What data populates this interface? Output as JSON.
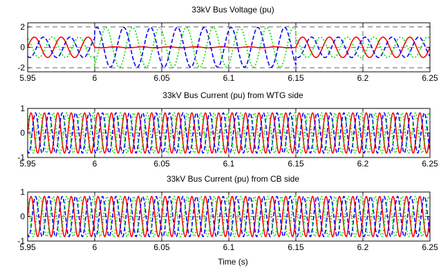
{
  "chart_data": [
    {
      "type": "line",
      "title": "33kV Bus Voltage (pu)",
      "xlabel": "",
      "ylabel": "",
      "xlim": [
        5.95,
        6.25
      ],
      "ylim": [
        -2.4,
        2.4
      ],
      "xticks": [
        5.95,
        6,
        6.05,
        6.1,
        6.15,
        6.2,
        6.25
      ],
      "xtick_labels": [
        "5.95",
        "6",
        "6.05",
        "6.1",
        "6.15",
        "6.2",
        "6.25"
      ],
      "yticks": [
        -2,
        0,
        2
      ],
      "ytick_labels": [
        "-2",
        "0",
        "2"
      ],
      "grid": true,
      "frequency_hz": 50,
      "series": [
        {
          "color": "#ff0000",
          "style": "solid",
          "phase_deg": 0,
          "segments": [
            {
              "x_start": 5.95,
              "x_end": 6.0,
              "amplitude": 1.0
            },
            {
              "x_start": 6.0,
              "x_end": 6.15,
              "amplitude": 0.05
            },
            {
              "x_start": 6.15,
              "x_end": 6.25,
              "amplitude": 1.0
            }
          ]
        },
        {
          "color": "#0000ff",
          "style": "dashed",
          "phase_deg": -120,
          "segments": [
            {
              "x_start": 5.95,
              "x_end": 6.0,
              "amplitude": 1.0
            },
            {
              "x_start": 6.0,
              "x_end": 6.15,
              "amplitude": 1.95
            },
            {
              "x_start": 6.15,
              "x_end": 6.25,
              "amplitude": 1.0
            }
          ]
        },
        {
          "color": "#00dd00",
          "style": "dotted",
          "phase_deg": 120,
          "segments": [
            {
              "x_start": 5.95,
              "x_end": 6.0,
              "amplitude": 1.0
            },
            {
              "x_start": 6.0,
              "x_end": 6.15,
              "amplitude": 1.95
            },
            {
              "x_start": 6.15,
              "x_end": 6.25,
              "amplitude": 1.0
            }
          ]
        }
      ]
    },
    {
      "type": "line",
      "title": "33kV Bus Current (pu) from WTG side",
      "xlabel": "",
      "ylabel": "",
      "xlim": [
        5.95,
        6.25
      ],
      "ylim": [
        -1,
        1
      ],
      "xticks": [
        5.95,
        6,
        6.05,
        6.1,
        6.15,
        6.2,
        6.25
      ],
      "xtick_labels": [
        "5.95",
        "6",
        "6.05",
        "6.1",
        "6.15",
        "6.2",
        "6.25"
      ],
      "yticks": [
        -1,
        0,
        1
      ],
      "ytick_labels": [
        "-1",
        "0",
        "1"
      ],
      "grid": true,
      "frequency_hz": 100,
      "series": [
        {
          "color": "#ff0000",
          "style": "solid",
          "phase_deg": 0,
          "segments": [
            {
              "x_start": 5.95,
              "x_end": 6.25,
              "amplitude": 0.82
            }
          ]
        },
        {
          "color": "#0000ff",
          "style": "dashed",
          "phase_deg": -120,
          "segments": [
            {
              "x_start": 5.95,
              "x_end": 6.25,
              "amplitude": 0.82
            }
          ]
        },
        {
          "color": "#00dd00",
          "style": "dotted",
          "phase_deg": 120,
          "segments": [
            {
              "x_start": 5.95,
              "x_end": 6.25,
              "amplitude": 0.82
            }
          ]
        }
      ]
    },
    {
      "type": "line",
      "title": "33kV Bus Current (pu) from CB side",
      "xlabel": "Time (s)",
      "ylabel": "",
      "xlim": [
        5.95,
        6.25
      ],
      "ylim": [
        -1,
        1
      ],
      "xticks": [
        5.95,
        6,
        6.05,
        6.1,
        6.15,
        6.2,
        6.25
      ],
      "xtick_labels": [
        "5.95",
        "6",
        "6.05",
        "6.1",
        "6.15",
        "6.2",
        "6.25"
      ],
      "yticks": [
        -1,
        0,
        1
      ],
      "ytick_labels": [
        "-1",
        "0",
        "1"
      ],
      "grid": true,
      "frequency_hz": 100,
      "series": [
        {
          "color": "#ff0000",
          "style": "solid",
          "phase_deg": 0,
          "segments": [
            {
              "x_start": 5.95,
              "x_end": 6.25,
              "amplitude": 0.82
            }
          ]
        },
        {
          "color": "#0000ff",
          "style": "dashed",
          "phase_deg": -120,
          "segments": [
            {
              "x_start": 5.95,
              "x_end": 6.25,
              "amplitude": 0.82
            }
          ]
        },
        {
          "color": "#00dd00",
          "style": "dotted",
          "phase_deg": 120,
          "segments": [
            {
              "x_start": 5.95,
              "x_end": 6.25,
              "amplitude": 0.82
            }
          ]
        }
      ]
    }
  ]
}
